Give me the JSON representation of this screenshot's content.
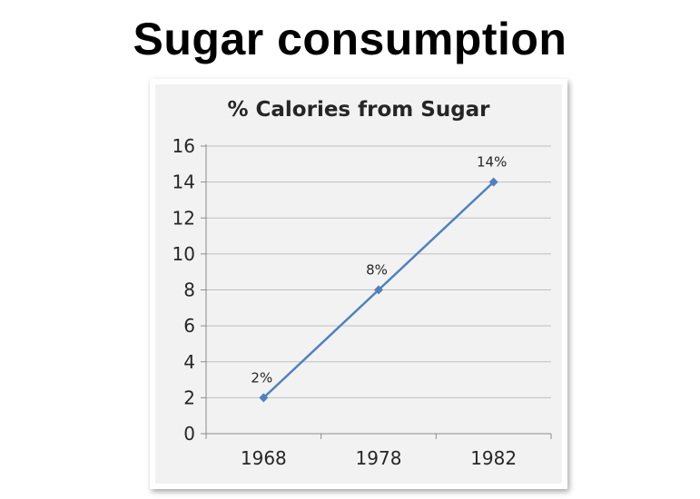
{
  "slide": {
    "title": "Sugar consumption"
  },
  "chart_data": {
    "type": "line",
    "title": "% Calories from Sugar",
    "categories": [
      "1968",
      "1978",
      "1982"
    ],
    "series": [
      {
        "values": [
          2,
          8,
          14
        ],
        "labels": [
          "2%",
          "8%",
          "14%"
        ]
      }
    ],
    "xlabel": "",
    "ylabel": "",
    "ylim": [
      0,
      16
    ],
    "yticks": [
      0,
      2,
      4,
      6,
      8,
      10,
      12,
      14,
      16
    ],
    "grid": true,
    "legend": "none",
    "colors": {
      "line": "#4F81BD",
      "plot_bg": "#F2F2F2",
      "grid": "#BFBFBF",
      "text": "#262626"
    }
  }
}
